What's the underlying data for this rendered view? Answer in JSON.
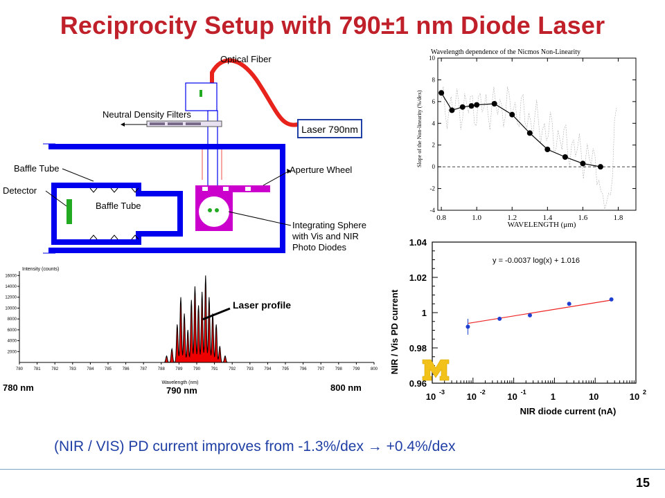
{
  "slide": {
    "title": "Reciprocity Setup with 790±1 nm Diode Laser",
    "subtitle": "(NIR / VIS) PD current improves from -1.3%/dex → +0.4%/dex",
    "page_number": "15"
  },
  "diagram": {
    "labels": {
      "optical_fiber": "Optical Fiber",
      "nd_filters": "Neutral Density Filters",
      "laser": "Laser 790nm",
      "baffle_tube_outer": "Baffle Tube",
      "baffle_tube_inner": "Baffle Tube",
      "detector": "Detector",
      "aperture_wheel": "Aperture Wheel",
      "sphere_line1": "Integrating Sphere",
      "sphere_line2": "with Vis and NIR",
      "sphere_line3": "Photo Diodes"
    },
    "colors": {
      "blue": "#0000ee",
      "red": "#e8231c",
      "magenta": "#cc00cc",
      "green": "#22aa22"
    }
  },
  "spectrum": {
    "ylabel": "Intensity (counts)",
    "xlabel": "Wavelength (nm)",
    "annotation": "Laser profile",
    "label_left": "780 nm",
    "label_mid": "790 nm",
    "label_right": "800 nm",
    "fill_color": "#ee0000"
  },
  "chart_data": [
    {
      "type": "line",
      "title": "Wavelength dependence of the Nicmos Non-Linearity",
      "xlabel": "WAVELENGTH (μm)",
      "ylabel": "Slope of the Non-linearity (%/dex)",
      "xlim": [
        0.78,
        1.9
      ],
      "ylim": [
        -4,
        10
      ],
      "xticks": [
        "0.8",
        "1.0",
        "1.2",
        "1.4",
        "1.6",
        "1.8"
      ],
      "yticks": [
        "-4",
        "-2",
        "0",
        "2",
        "4",
        "6",
        "8",
        "10"
      ],
      "reference_line_y": 0,
      "series": [
        {
          "x": [
            0.8,
            0.86,
            0.92,
            0.97,
            1.0,
            1.1,
            1.2,
            1.3,
            1.4,
            1.5,
            1.6,
            1.7
          ],
          "y": [
            6.8,
            5.2,
            5.5,
            5.6,
            5.7,
            5.8,
            4.8,
            3.1,
            1.6,
            0.9,
            0.3,
            0.0
          ]
        }
      ]
    },
    {
      "type": "scatter",
      "annotation": "y = -0.0037 log(x) + 1.016",
      "xlabel": "NIR diode current (nA)",
      "ylabel": "NIR / Vis PD current",
      "xscale": "log",
      "xlim": [
        0.001,
        100
      ],
      "ylim": [
        0.96,
        1.04
      ],
      "xtick_labels": [
        {
          "base": "10",
          "exp": "-3"
        },
        {
          "base": "10",
          "exp": "-2"
        },
        {
          "base": "10",
          "exp": "-1"
        },
        {
          "base": "1",
          "exp": ""
        },
        {
          "base": "10",
          "exp": ""
        },
        {
          "base": "10",
          "exp": "2"
        }
      ],
      "yticks": [
        "0.96",
        "0.98",
        "1",
        "1.02",
        "1.04"
      ],
      "series": [
        {
          "x": [
            0.0075,
            0.045,
            0.25,
            2.3,
            25
          ],
          "y": [
            0.992,
            0.9965,
            0.9985,
            1.005,
            1.0075
          ]
        }
      ],
      "fit_line": {
        "x": [
          0.0075,
          25
        ],
        "y": [
          0.9939,
          1.0071
        ],
        "color": "#ee2222"
      },
      "point_color": "#1f3fd0"
    }
  ]
}
